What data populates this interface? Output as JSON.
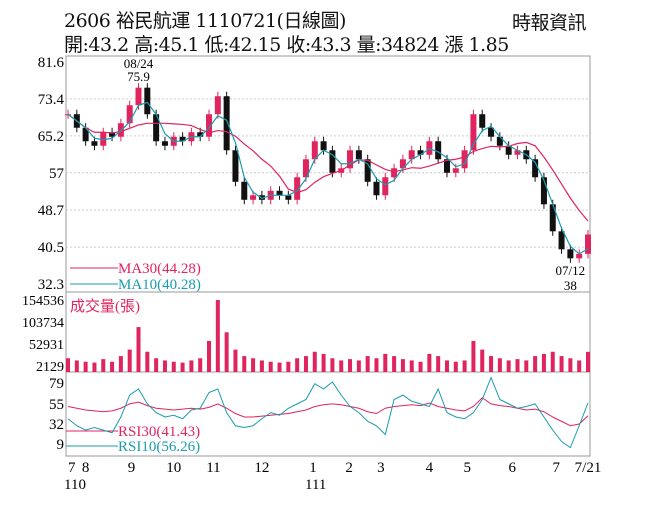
{
  "header": {
    "title": "2606  裕民航運 1110721(日線圖)",
    "source": "時報資訊",
    "quote": "開:43.2 高:45.1 低:42.15 收:43.3 量:34824 漲 1.85"
  },
  "colors": {
    "up": "#e0245e",
    "down": "#111111",
    "ma30": "#e0245e",
    "ma10": "#1a9bb0",
    "volume": "#e0245e"
  },
  "chart_data": [
    {
      "type": "candlestick",
      "panel": "price",
      "yticks": [
        81.6,
        73.4,
        65.2,
        57.0,
        48.7,
        40.5,
        32.3
      ],
      "ylim": [
        32.3,
        81.6
      ],
      "close": [
        70,
        67,
        64,
        63,
        66,
        65,
        68,
        72,
        75.9,
        70,
        64,
        63,
        65,
        64,
        66,
        65,
        70,
        74,
        62,
        55,
        51,
        52,
        51,
        53,
        52,
        51,
        56,
        60,
        64,
        62,
        57,
        58,
        62,
        60,
        55,
        52,
        56,
        58,
        60,
        62,
        61,
        64,
        60,
        57,
        58,
        62,
        70,
        67,
        65,
        63,
        61,
        62,
        60,
        56,
        50,
        44,
        40,
        38,
        39,
        43.3
      ],
      "annotations": [
        {
          "label": "08/24",
          "value": "75.9",
          "index": 8
        },
        {
          "label": "07/12",
          "value": "38",
          "index": 57
        }
      ],
      "legend": [
        {
          "name": "MA30(44.28)",
          "color": "#e0245e"
        },
        {
          "name": "MA10(40.28)",
          "color": "#1a9bb0"
        }
      ]
    },
    {
      "type": "bar",
      "panel": "volume",
      "title": "成交量(張)",
      "yticks": [
        154536,
        103734,
        52931,
        2129
      ],
      "ylim": [
        2129,
        154536
      ],
      "values": [
        20000,
        15000,
        12000,
        10000,
        18000,
        12000,
        25000,
        40000,
        92000,
        35000,
        20000,
        15000,
        12000,
        10000,
        15000,
        20000,
        60000,
        154536,
        80000,
        40000,
        25000,
        20000,
        15000,
        12000,
        10000,
        12000,
        20000,
        25000,
        35000,
        30000,
        20000,
        15000,
        18000,
        15000,
        25000,
        20000,
        30000,
        25000,
        18000,
        15000,
        12000,
        30000,
        25000,
        15000,
        12000,
        15000,
        60000,
        40000,
        25000,
        20000,
        15000,
        18000,
        15000,
        25000,
        30000,
        35000,
        25000,
        20000,
        15000,
        34824
      ]
    },
    {
      "type": "line",
      "panel": "rsi",
      "yticks": [
        79,
        55,
        32,
        9
      ],
      "ylim": [
        0,
        88
      ],
      "series": [
        {
          "name": "RSI30(41.43)",
          "color": "#e0245e",
          "values": [
            52,
            50,
            48,
            47,
            46,
            47,
            50,
            55,
            57,
            53,
            50,
            49,
            48,
            49,
            50,
            49,
            51,
            55,
            50,
            44,
            40,
            40,
            41,
            42,
            43,
            44,
            46,
            48,
            52,
            54,
            55,
            54,
            52,
            50,
            46,
            44,
            50,
            52,
            53,
            54,
            53,
            56,
            52,
            50,
            48,
            47,
            52,
            62,
            55,
            53,
            52,
            50,
            48,
            49,
            46,
            40,
            35,
            30,
            32,
            41.43
          ]
        },
        {
          "name": "RSI10(56.26)",
          "color": "#1a9bb0",
          "values": [
            38,
            30,
            25,
            28,
            25,
            22,
            40,
            65,
            72,
            55,
            45,
            40,
            42,
            38,
            48,
            50,
            68,
            72,
            45,
            30,
            28,
            30,
            38,
            45,
            42,
            50,
            55,
            60,
            78,
            72,
            80,
            65,
            52,
            45,
            35,
            30,
            20,
            60,
            65,
            58,
            55,
            52,
            72,
            45,
            40,
            38,
            45,
            60,
            85,
            60,
            55,
            50,
            52,
            55,
            40,
            25,
            12,
            5,
            30,
            56.26
          ]
        }
      ]
    }
  ],
  "xaxis": {
    "ticks": [
      {
        "label": "7",
        "index": 0
      },
      {
        "label": "8",
        "index": 2
      },
      {
        "label": "9",
        "index": 7.2
      },
      {
        "label": "10",
        "index": 12
      },
      {
        "label": "11",
        "index": 16.5
      },
      {
        "label": "12",
        "index": 22
      },
      {
        "label": "1",
        "index": 27.8
      },
      {
        "label": "2",
        "index": 31.9
      },
      {
        "label": "3",
        "index": 35.5
      },
      {
        "label": "4",
        "index": 41
      },
      {
        "label": "5",
        "index": 45.3
      },
      {
        "label": "6",
        "index": 50.4
      },
      {
        "label": "7",
        "index": 55.4
      },
      {
        "label": "7/21",
        "index": 59
      }
    ],
    "years": [
      {
        "label": "110",
        "index": 0
      },
      {
        "label": "111",
        "index": 27.8
      }
    ]
  }
}
